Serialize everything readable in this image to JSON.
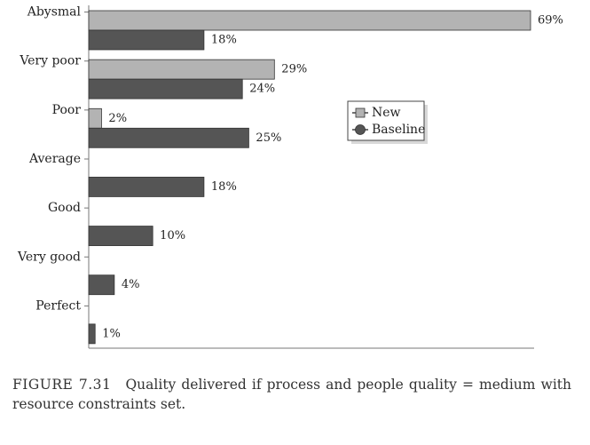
{
  "chart_data": {
    "type": "bar",
    "orientation": "horizontal",
    "categories": [
      "Abysmal",
      "Very poor",
      "Poor",
      "Average",
      "Good",
      "Very good",
      "Perfect"
    ],
    "series": [
      {
        "name": "New",
        "values": [
          69,
          29,
          2,
          null,
          null,
          null,
          null
        ],
        "color": "#b3b3b3"
      },
      {
        "name": "Baseline",
        "values": [
          18,
          24,
          25,
          18,
          10,
          4,
          1
        ],
        "color": "#555555"
      }
    ],
    "value_suffix": "%",
    "xlim": [
      0,
      69
    ],
    "legend_position": "right",
    "grid": false
  },
  "caption": {
    "figure_label": "FIGURE 7.31",
    "text": "Quality delivered if process and people quality = medium with resource constraints set."
  }
}
